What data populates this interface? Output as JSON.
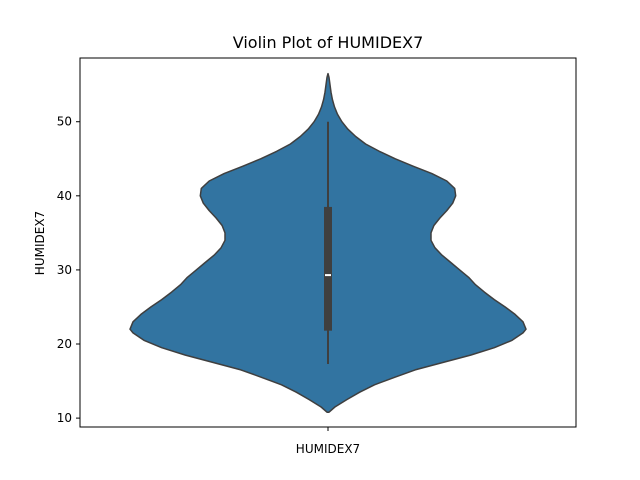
{
  "chart_data": {
    "type": "violin",
    "title": "Violin Plot of HUMIDEX7",
    "xlabel": "",
    "ylabel": "HUMIDEX7",
    "categories": [
      "HUMIDEX7"
    ],
    "ylim": [
      8.8,
      58.6
    ],
    "yticks": [
      10,
      20,
      30,
      40,
      50
    ],
    "grid": false,
    "fill_color": "#3274a1",
    "edge_color": "#3f3f3f",
    "density_min": 10.8,
    "density_max": 56.5,
    "density_profile": [
      {
        "y": 10.8,
        "w": 0.005
      },
      {
        "y": 11.5,
        "w": 0.035
      },
      {
        "y": 12.5,
        "w": 0.095
      },
      {
        "y": 13.5,
        "w": 0.16
      },
      {
        "y": 14.5,
        "w": 0.235
      },
      {
        "y": 15.5,
        "w": 0.335
      },
      {
        "y": 16.5,
        "w": 0.44
      },
      {
        "y": 17.5,
        "w": 0.58
      },
      {
        "y": 18.5,
        "w": 0.72
      },
      {
        "y": 19.5,
        "w": 0.84
      },
      {
        "y": 20.5,
        "w": 0.93
      },
      {
        "y": 21.5,
        "w": 0.985
      },
      {
        "y": 22.0,
        "w": 1.0
      },
      {
        "y": 23.0,
        "w": 0.985
      },
      {
        "y": 24.0,
        "w": 0.945
      },
      {
        "y": 25.0,
        "w": 0.895
      },
      {
        "y": 26.0,
        "w": 0.84
      },
      {
        "y": 27.0,
        "w": 0.79
      },
      {
        "y": 28.0,
        "w": 0.745
      },
      {
        "y": 29.0,
        "w": 0.71
      },
      {
        "y": 30.0,
        "w": 0.665
      },
      {
        "y": 31.0,
        "w": 0.62
      },
      {
        "y": 32.0,
        "w": 0.575
      },
      {
        "y": 33.0,
        "w": 0.54
      },
      {
        "y": 34.0,
        "w": 0.52
      },
      {
        "y": 35.0,
        "w": 0.52
      },
      {
        "y": 36.0,
        "w": 0.535
      },
      {
        "y": 37.0,
        "w": 0.565
      },
      {
        "y": 38.0,
        "w": 0.6
      },
      {
        "y": 39.0,
        "w": 0.63
      },
      {
        "y": 40.0,
        "w": 0.645
      },
      {
        "y": 41.0,
        "w": 0.64
      },
      {
        "y": 42.0,
        "w": 0.6
      },
      {
        "y": 43.0,
        "w": 0.525
      },
      {
        "y": 44.0,
        "w": 0.43
      },
      {
        "y": 45.0,
        "w": 0.34
      },
      {
        "y": 46.0,
        "w": 0.26
      },
      {
        "y": 47.0,
        "w": 0.19
      },
      {
        "y": 48.0,
        "w": 0.14
      },
      {
        "y": 49.0,
        "w": 0.1
      },
      {
        "y": 50.0,
        "w": 0.07
      },
      {
        "y": 51.0,
        "w": 0.048
      },
      {
        "y": 52.0,
        "w": 0.033
      },
      {
        "y": 53.0,
        "w": 0.022
      },
      {
        "y": 54.0,
        "w": 0.015
      },
      {
        "y": 55.0,
        "w": 0.01
      },
      {
        "y": 56.0,
        "w": 0.005
      },
      {
        "y": 56.5,
        "w": 0.0
      }
    ],
    "box": {
      "whisker_low": 17.3,
      "q1": 21.8,
      "median": 29.3,
      "q3": 38.5,
      "whisker_high": 50.0
    }
  }
}
